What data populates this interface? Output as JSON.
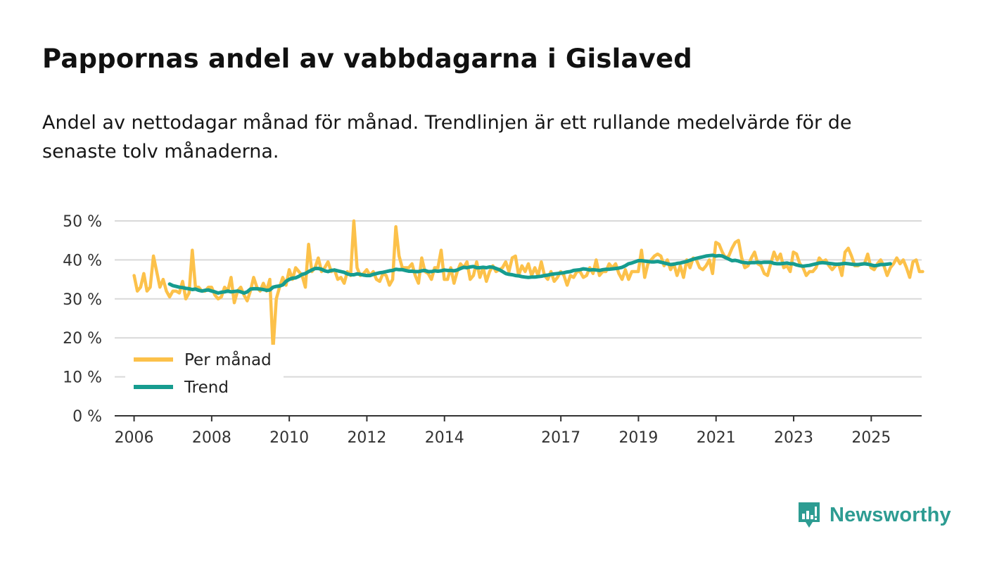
{
  "header": {
    "title": "Pappornas andel av vabbdagarna i Gislaved",
    "subtitle": "Andel av nettodagar månad för månad. Trendlinjen är ett rullande medelvärde för de senaste tolv månaderna."
  },
  "brand": {
    "name": "Newsworthy",
    "icon": "newsworthy-logo-icon"
  },
  "colors": {
    "monthly": "#fcc14a",
    "trend": "#169c8f",
    "grid": "#d9d9d9",
    "axis": "#333333",
    "text": "#333333"
  },
  "chart_data": {
    "type": "line",
    "title": "Pappornas andel av vabbdagarna i Gislaved",
    "ylim": [
      0,
      50
    ],
    "yticks": [
      0,
      10,
      20,
      30,
      40,
      50
    ],
    "ytick_labels": [
      "0 %",
      "10 %",
      "20 %",
      "30 %",
      "40 %",
      "50 %"
    ],
    "xlim": [
      2005.5,
      2026.3
    ],
    "xticks": [
      2006,
      2008,
      2010,
      2012,
      2014,
      2017,
      2019,
      2021,
      2023,
      2025
    ],
    "xtick_labels": [
      "2006",
      "2008",
      "2010",
      "2012",
      "2014",
      "2017",
      "2019",
      "2021",
      "2023",
      "2025"
    ],
    "legend": {
      "position": "bottom-left",
      "entries": [
        "Per månad",
        "Trend"
      ]
    },
    "series": [
      {
        "name": "Per månad",
        "x_start": 2006.0,
        "step": 0.0833,
        "values": [
          36,
          32,
          33,
          36.5,
          32,
          33,
          41,
          37,
          33,
          35,
          32,
          30.5,
          32,
          32,
          31.5,
          34.5,
          30,
          31.5,
          42.5,
          33,
          33,
          32,
          32,
          33,
          33,
          31,
          30,
          30.5,
          33,
          32,
          35.5,
          29,
          32,
          33,
          31,
          29.5,
          32,
          35.5,
          33,
          32,
          34,
          32,
          35,
          17,
          30,
          33,
          35.5,
          33.5,
          37.5,
          35,
          38,
          37,
          36,
          33,
          44,
          37,
          38,
          40.5,
          37,
          38,
          39.5,
          37,
          37.5,
          35,
          35.5,
          34,
          37,
          36,
          50,
          38,
          36,
          36.5,
          37.5,
          36,
          37,
          35,
          34.5,
          36.5,
          36,
          33.5,
          35,
          48.5,
          41,
          38,
          38,
          38,
          39,
          36,
          34,
          40.5,
          37,
          36.5,
          35,
          38,
          38,
          42.5,
          35,
          35,
          38,
          34,
          37,
          39,
          38,
          39.5,
          35,
          36,
          39.5,
          35.5,
          38,
          34.5,
          37,
          38.5,
          37,
          37.5,
          38,
          39.5,
          37,
          40.5,
          41,
          36,
          38.5,
          37,
          39,
          36,
          38,
          36,
          39.5,
          36,
          35,
          37,
          34.5,
          35.5,
          37,
          36,
          33.5,
          36,
          35.5,
          37,
          37,
          35.5,
          36,
          38,
          36.5,
          40,
          36,
          37,
          37,
          39,
          38,
          39,
          36.5,
          35,
          37.5,
          35,
          37,
          37,
          37,
          42.5,
          35.5,
          39,
          40,
          41,
          41.5,
          41,
          38.5,
          40,
          37.5,
          39,
          36,
          38.5,
          35.5,
          40,
          38,
          40.5,
          40,
          38,
          37.5,
          38.5,
          40,
          36.5,
          44.5,
          44,
          42,
          40.5,
          41,
          43,
          44.5,
          45,
          40.5,
          38,
          38.5,
          40.5,
          42,
          39,
          38.5,
          36.5,
          36,
          39,
          42,
          40,
          41.5,
          38,
          38.5,
          37,
          42,
          41.5,
          39,
          38,
          36,
          37,
          37,
          38,
          40.5,
          39.5,
          40,
          38.5,
          37.5,
          38.5,
          39,
          36,
          42,
          43,
          41,
          38.5,
          38.5,
          39,
          39,
          41.5,
          38,
          37.5,
          39,
          40,
          38.5,
          36,
          38,
          39,
          40.5,
          39,
          40,
          38,
          35.5,
          39.5,
          40,
          37,
          37
        ]
      },
      {
        "name": "Trend",
        "x_start": 2006.9167,
        "step": 0.0833,
        "values": [
          33.8,
          33.4,
          33.2,
          33,
          32.9,
          32.7,
          32.6,
          32.4,
          32.5,
          32.2,
          32,
          32.2,
          32.3,
          32,
          31.8,
          31.5,
          31.7,
          31.8,
          32,
          31.8,
          31.9,
          32,
          31.8,
          31.5,
          31.8,
          32.5,
          32.6,
          32.6,
          32.5,
          32.4,
          32.2,
          32.3,
          33,
          33.2,
          33.3,
          33.6,
          34.5,
          35,
          35.3,
          35.4,
          35.8,
          36.3,
          36.5,
          37,
          37.4,
          37.8,
          37.8,
          37.6,
          37.2,
          37,
          37.3,
          37.4,
          37.2,
          37,
          36.8,
          36.4,
          36.2,
          36.2,
          36.4,
          36.3,
          36.1,
          36,
          36,
          36.3,
          36.5,
          36.7,
          36.8,
          37,
          37.2,
          37.3,
          37.6,
          37.5,
          37.5,
          37.3,
          37.1,
          37.1,
          37,
          37,
          37.2,
          37.3,
          37,
          37,
          37.2,
          37.1,
          37.2,
          37.4,
          37.3,
          37.3,
          37.2,
          37.4,
          37.8,
          38.1,
          38,
          38.2,
          38.3,
          38,
          38,
          38.1,
          38,
          38.2,
          38.1,
          37.8,
          37.5,
          37,
          36.5,
          36.3,
          36.2,
          36,
          35.9,
          35.7,
          35.6,
          35.5,
          35.6,
          35.6,
          35.7,
          35.8,
          36,
          36.1,
          36.3,
          36.4,
          36.5,
          36.6,
          36.7,
          36.9,
          37,
          37.3,
          37.4,
          37.5,
          37.7,
          37.6,
          37.4,
          37.5,
          37.4,
          37.3,
          37.5,
          37.6,
          37.6,
          37.7,
          37.8,
          37.9,
          38.1,
          38.5,
          39,
          39.2,
          39.5,
          39.8,
          39.8,
          39.7,
          39.6,
          39.5,
          39.5,
          39.6,
          39.4,
          39.2,
          39,
          38.8,
          38.9,
          39.1,
          39.2,
          39.4,
          39.6,
          39.9,
          40.2,
          40.4,
          40.6,
          40.8,
          41,
          41.1,
          41.2,
          41,
          41.1,
          41,
          40.6,
          40.2,
          39.8,
          39.9,
          39.7,
          39.4,
          39.3,
          39.2,
          39.3,
          39.3,
          39.4,
          39.3,
          39.4,
          39.4,
          39.4,
          39.1,
          39,
          39,
          39.1,
          39.2,
          39,
          39,
          38.7,
          38.5,
          38.4,
          38.5,
          38.6,
          38.8,
          39,
          39.2,
          39.3,
          39.2,
          39.1,
          39,
          38.9,
          38.9,
          39,
          39.1,
          39,
          38.9,
          38.8,
          38.8,
          38.9,
          39,
          38.9,
          38.7,
          38.5,
          38.6,
          38.8,
          38.8,
          38.9,
          39
        ]
      }
    ]
  }
}
